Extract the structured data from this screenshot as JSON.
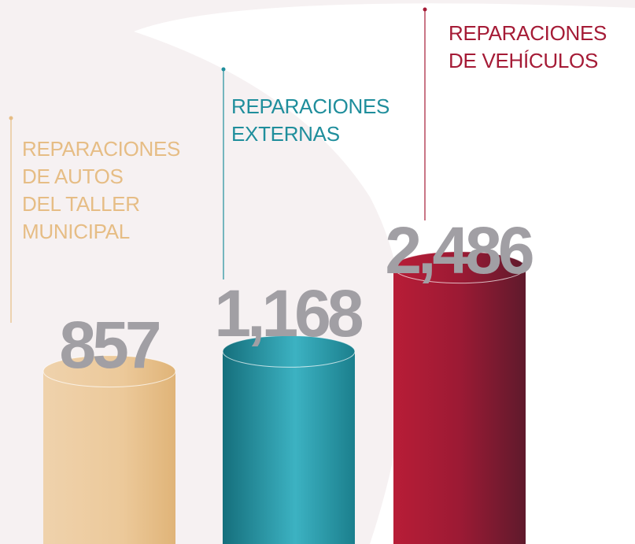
{
  "chart_data": {
    "type": "cylinder-bar",
    "categories": [
      [
        "REPARACIONES",
        "DE AUTOS",
        "DEL TALLER",
        "MUNICIPAL"
      ],
      [
        "REPARACIONES",
        "EXTERNAS"
      ],
      [
        "REPARACIONES",
        "DE VEHÍCULOS"
      ]
    ],
    "values": [
      857,
      1168,
      2486
    ],
    "value_labels": [
      "857",
      "1,168",
      "2,486"
    ],
    "colors": [
      "#e6bd85",
      "#1f8e9c",
      "#a51b36"
    ]
  }
}
